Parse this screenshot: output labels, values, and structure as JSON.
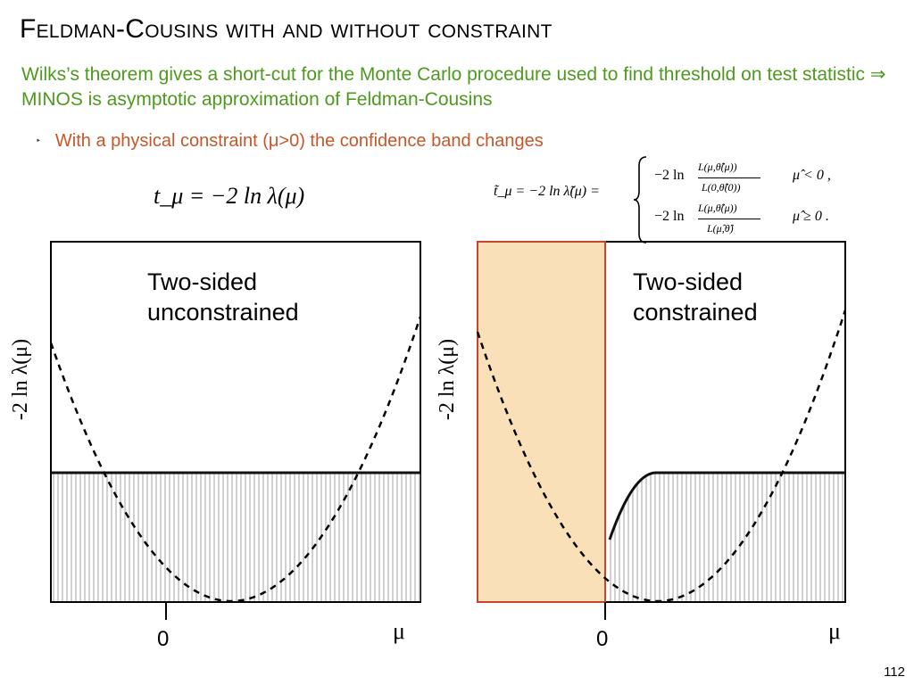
{
  "slide": {
    "title": "Feldman-Cousins with and without constraint",
    "intro": "Wilks’s theorem gives a short-cut for the Monte Carlo procedure used to  find threshold on test statistic ⇒ MINOS is asymptotic approximation of Feldman-Cousins",
    "bullet": "With a physical constraint (μ>0) the confidence band changes",
    "page_number": "112"
  },
  "formulas": {
    "left": "t_μ = −2 ln λ(μ)",
    "right_lhs": "t̃_μ = −2 ln λ̃(μ) =",
    "case1_num": "L(μ,θ̂̂(μ))",
    "case1_den": "L(0,θ̂̂(0))",
    "case1_cond": "μ̂ < 0 ,",
    "case2_num": "L(μ,θ̂̂(μ))",
    "case2_den": "L(μ̂,θ̂)",
    "case2_cond": "μ̂ ≥ 0 .",
    "neg2ln": "−2 ln"
  },
  "colors": {
    "intro": "#4e9a1e",
    "bullet": "#c4582a",
    "shade_fill": "#fae0b8",
    "shade_border": "#c8452b"
  },
  "panels": [
    {
      "ylabel": "-2 ln λ(μ)",
      "title_line1": "Two-sided",
      "title_line2": "unconstrained",
      "zero_label": "0",
      "x_label": "μ"
    },
    {
      "ylabel": "-2 ln λ(μ)",
      "title_line1": "Two-sided",
      "title_line2": "constrained",
      "zero_label": "0",
      "x_label": "μ"
    }
  ],
  "chart_data": [
    {
      "type": "line",
      "xlabel": "μ",
      "ylabel": "-2 ln λ(μ)",
      "xticks": [
        "0"
      ],
      "series": [
        {
          "style": "dashed",
          "shape": "parabola",
          "vertex_x": 0.6,
          "values": []
        },
        {
          "style": "solid-hatched",
          "shape": "flat threshold"
        }
      ]
    },
    {
      "type": "line",
      "xlabel": "μ",
      "ylabel": "-2 ln λ(μ)",
      "xticks": [
        "0"
      ],
      "shaded_region": "μ < 0",
      "series": [
        {
          "style": "dashed",
          "shape": "parabola",
          "vertex_x": 0.6
        },
        {
          "style": "solid-hatched",
          "shape": "rising from 0 then flat threshold"
        }
      ]
    }
  ]
}
